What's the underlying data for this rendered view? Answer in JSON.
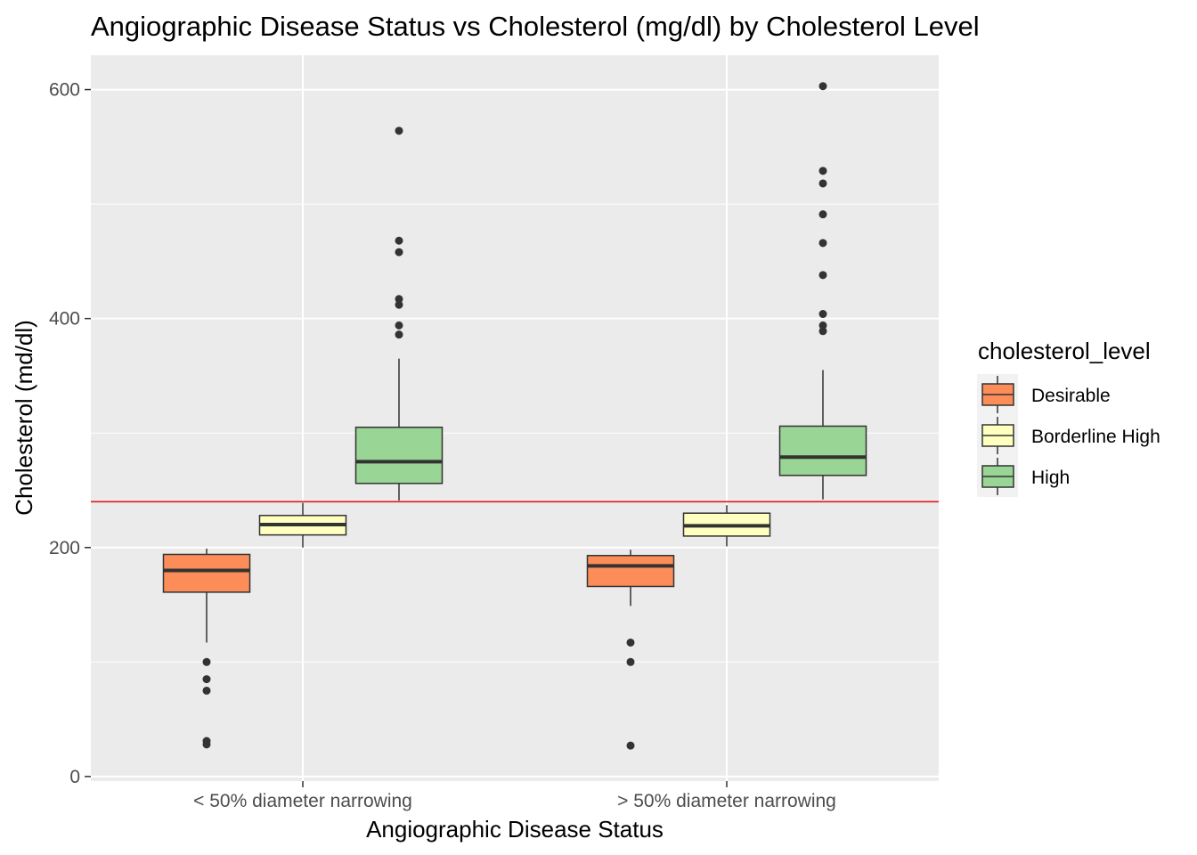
{
  "chart_data": {
    "type": "box",
    "title": "Angiographic Disease Status vs Cholesterol (mg/dl) by Cholesterol Level",
    "xlabel": "Angiographic Disease Status",
    "ylabel": "Cholesterol (md/dl)",
    "categories": [
      "< 50% diameter narrowing",
      "> 50% diameter narrowing"
    ],
    "ylim": [
      -4,
      630
    ],
    "yticks": [
      0,
      200,
      400,
      600
    ],
    "grid": true,
    "reference_line": {
      "y": 240,
      "color": "#e31a1c"
    },
    "legend": {
      "title": "cholesterol_level",
      "placement": "right",
      "entries": [
        "Desirable",
        "Borderline High",
        "High"
      ]
    },
    "series": [
      {
        "name": "Desirable",
        "color": "#fc8d59",
        "boxes": [
          {
            "q1": 161,
            "median": 180,
            "q3": 194,
            "whisker_low": 117,
            "whisker_high": 199,
            "outliers": [
              100,
              85,
              75,
              31,
              28
            ]
          },
          {
            "q1": 166,
            "median": 184,
            "q3": 193,
            "whisker_low": 149,
            "whisker_high": 198,
            "outliers": [
              117,
              100,
              27
            ]
          }
        ]
      },
      {
        "name": "Borderline High",
        "color": "#ffffbf",
        "boxes": [
          {
            "q1": 211,
            "median": 220,
            "q3": 228,
            "whisker_low": 200,
            "whisker_high": 239,
            "outliers": []
          },
          {
            "q1": 210,
            "median": 219,
            "q3": 230,
            "whisker_low": 201,
            "whisker_high": 237,
            "outliers": []
          }
        ]
      },
      {
        "name": "High",
        "color": "#99d594",
        "boxes": [
          {
            "q1": 256,
            "median": 275,
            "q3": 305,
            "whisker_low": 241,
            "whisker_high": 365,
            "outliers": [
              564,
              468,
              458,
              417,
              412,
              394,
              386
            ]
          },
          {
            "q1": 263,
            "median": 279,
            "q3": 306,
            "whisker_low": 242,
            "whisker_high": 355,
            "outliers": [
              603,
              529,
              518,
              491,
              466,
              438,
              404,
              394,
              389
            ]
          }
        ]
      }
    ]
  }
}
